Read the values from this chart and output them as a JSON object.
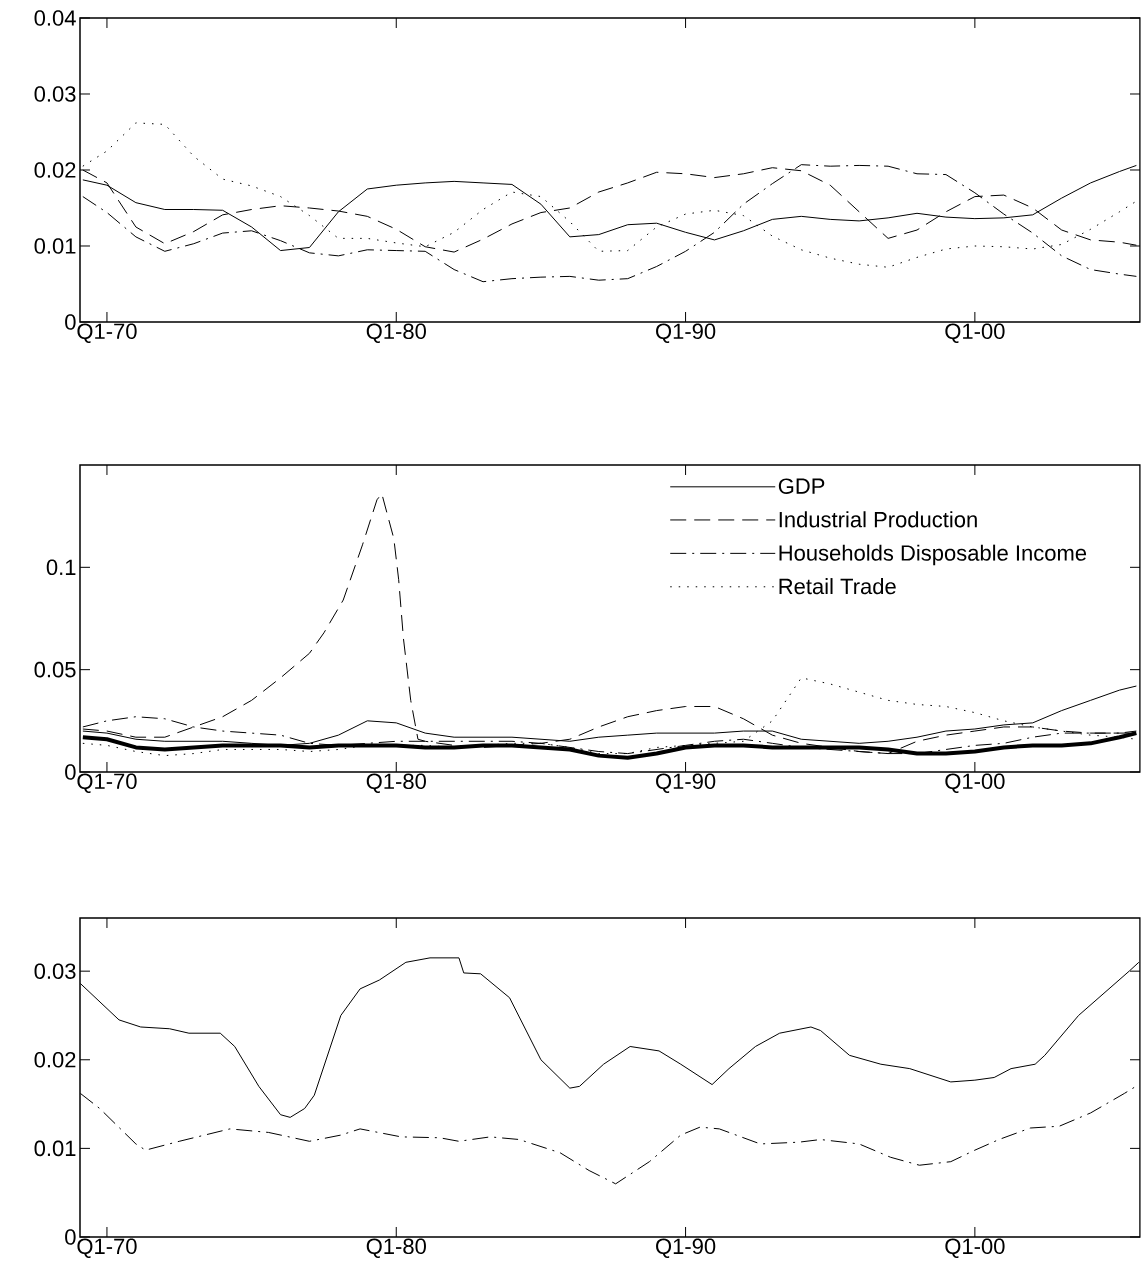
{
  "chart_data": [
    {
      "type": "line",
      "xlim": [
        "1969-01-26",
        "2005-09-16"
      ],
      "ylim": [
        0,
        0.04
      ],
      "xticks": [
        {
          "value": "1970-01",
          "label": "Q1-70"
        },
        {
          "value": "1980-01",
          "label": "Q1-80"
        },
        {
          "value": "1990-01",
          "label": "Q1-90"
        },
        {
          "value": "2000-01",
          "label": "Q1-00"
        }
      ],
      "yticks": [
        0,
        0.01,
        0.02,
        0.03,
        0.04
      ],
      "x": [
        "1969-03",
        "1970-01",
        "1971-01",
        "1972-01",
        "1973-01",
        "1974-01",
        "1975-01",
        "1976-01",
        "1977-01",
        "1978-01",
        "1979-01",
        "1980-01",
        "1981-01",
        "1982-01",
        "1983-01",
        "1984-01",
        "1985-01",
        "1986-01",
        "1987-01",
        "1988-01",
        "1989-01",
        "1990-01",
        "1991-01",
        "1992-01",
        "1993-01",
        "1994-01",
        "1995-01",
        "1996-01",
        "1997-01",
        "1998-01",
        "1999-01",
        "2000-01",
        "2001-01",
        "2002-01",
        "2003-01",
        "2004-01",
        "2005-01",
        "2005-08"
      ],
      "series": [
        {
          "color": "#000000",
          "line_style": "solid",
          "values": [
            0.0187,
            0.018,
            0.0157,
            0.0148,
            0.0148,
            0.0147,
            0.0125,
            0.0094,
            0.0098,
            0.0145,
            0.0175,
            0.018,
            0.0183,
            0.0185,
            0.0183,
            0.0181,
            0.0155,
            0.0112,
            0.0115,
            0.0128,
            0.013,
            0.0118,
            0.0108,
            0.012,
            0.0135,
            0.0139,
            0.0135,
            0.0133,
            0.0137,
            0.0143,
            0.0138,
            0.0136,
            0.0137,
            0.0141,
            0.0163,
            0.0183,
            0.0198,
            0.0206
          ]
        },
        {
          "color": "#000000",
          "line_style": "dashed",
          "values": [
            0.02,
            0.0183,
            0.0125,
            0.0103,
            0.0119,
            0.0141,
            0.0148,
            0.0153,
            0.015,
            0.0146,
            0.0139,
            0.0122,
            0.0099,
            0.0092,
            0.0109,
            0.0129,
            0.0144,
            0.015,
            0.0171,
            0.0183,
            0.0197,
            0.0195,
            0.019,
            0.0195,
            0.0203,
            0.0199,
            0.018,
            0.0145,
            0.011,
            0.0121,
            0.0145,
            0.0165,
            0.0167,
            0.015,
            0.0121,
            0.0108,
            0.0105,
            0.0101
          ]
        },
        {
          "color": "#000000",
          "line_style": "dashdot",
          "values": [
            0.0165,
            0.0144,
            0.0112,
            0.0093,
            0.0103,
            0.0117,
            0.012,
            0.0107,
            0.0091,
            0.0087,
            0.0095,
            0.0094,
            0.0093,
            0.0069,
            0.0053,
            0.0057,
            0.0059,
            0.006,
            0.0055,
            0.0057,
            0.0073,
            0.0093,
            0.0118,
            0.0155,
            0.0182,
            0.0207,
            0.0205,
            0.0206,
            0.0205,
            0.0195,
            0.0194,
            0.017,
            0.0142,
            0.0117,
            0.0087,
            0.0069,
            0.0063,
            0.006
          ]
        },
        {
          "color": "#000000",
          "line_style": "dotted",
          "values": [
            0.0205,
            0.0225,
            0.0262,
            0.026,
            0.0218,
            0.0188,
            0.0179,
            0.0165,
            0.014,
            0.011,
            0.011,
            0.0104,
            0.0099,
            0.0118,
            0.0148,
            0.0171,
            0.0165,
            0.0132,
            0.0093,
            0.0094,
            0.0125,
            0.0142,
            0.0147,
            0.014,
            0.0113,
            0.0095,
            0.0084,
            0.0076,
            0.0072,
            0.0085,
            0.0096,
            0.01,
            0.0099,
            0.0096,
            0.0102,
            0.0122,
            0.0145,
            0.0159
          ]
        }
      ]
    },
    {
      "type": "line",
      "xlim": [
        "1969-01-26",
        "2005-09-16"
      ],
      "ylim": [
        0,
        0.15
      ],
      "legend": "top right",
      "xticks": [
        {
          "value": "1970-01",
          "label": "Q1-70"
        },
        {
          "value": "1980-01",
          "label": "Q1-80"
        },
        {
          "value": "1990-01",
          "label": "Q1-90"
        },
        {
          "value": "2000-01",
          "label": "Q1-00"
        }
      ],
      "yticks": [
        0,
        0.05,
        0.1
      ],
      "x": [
        "1969-03",
        "1970-01",
        "1971-01",
        "1972-01",
        "1973-01",
        "1974-01",
        "1975-01",
        "1976-01",
        "1977-01",
        "1978-01",
        "1979-01",
        "1980-01",
        "1981-01",
        "1982-01",
        "1983-01",
        "1984-01",
        "1985-01",
        "1986-01",
        "1987-01",
        "1988-01",
        "1989-01",
        "1990-01",
        "1991-01",
        "1992-01",
        "1993-01",
        "1994-01",
        "1995-01",
        "1996-01",
        "1997-01",
        "1998-01",
        "1999-01",
        "2000-01",
        "2001-01",
        "2002-01",
        "2003-01",
        "2004-01",
        "2005-01",
        "2005-08"
      ],
      "series": [
        {
          "name": "GDP",
          "color": "#000000",
          "line_style": "solid",
          "values": [
            0.02,
            0.019,
            0.016,
            0.015,
            0.015,
            0.015,
            0.014,
            0.013,
            0.014,
            0.018,
            0.025,
            0.024,
            0.019,
            0.017,
            0.017,
            0.017,
            0.016,
            0.015,
            0.017,
            0.018,
            0.019,
            0.019,
            0.019,
            0.02,
            0.02,
            0.016,
            0.015,
            0.014,
            0.015,
            0.017,
            0.02,
            0.021,
            0.023,
            0.024,
            0.03,
            0.035,
            0.04,
            0.042
          ]
        },
        {
          "name": "Industrial Production",
          "color": "#000000",
          "line_style": "dashed",
          "x": [
            "1969-03",
            "1970-01",
            "1971-01",
            "1972-01",
            "1973-01",
            "1974-01",
            "1975-01",
            "1976-01",
            "1977-01",
            "1977-07",
            "1978-03",
            "1978-11",
            "1979-05",
            "1979-07",
            "1979-12",
            "1980-02",
            "1980-04",
            "1980-07",
            "1980-10",
            "1981-01",
            "1982-01",
            "1983-01",
            "1984-01",
            "1985-01",
            "1986-01",
            "1987-01",
            "1988-01",
            "1989-01",
            "1990-01",
            "1991-01",
            "1992-01",
            "1993-01",
            "1994-01",
            "1995-01",
            "1996-01",
            "1997-01",
            "1998-01",
            "1999-01",
            "2000-01",
            "2001-01",
            "2002-01",
            "2003-01",
            "2004-01",
            "2005-01",
            "2005-08"
          ],
          "values": [
            0.021,
            0.02,
            0.017,
            0.017,
            0.022,
            0.027,
            0.035,
            0.046,
            0.058,
            0.068,
            0.084,
            0.111,
            0.133,
            0.136,
            0.114,
            0.094,
            0.065,
            0.035,
            0.016,
            0.015,
            0.013,
            0.012,
            0.013,
            0.014,
            0.016,
            0.022,
            0.027,
            0.03,
            0.032,
            0.032,
            0.026,
            0.018,
            0.014,
            0.012,
            0.01,
            0.009,
            0.015,
            0.018,
            0.02,
            0.022,
            0.022,
            0.02,
            0.019,
            0.019,
            0.019
          ]
        },
        {
          "name": "Households Disposable Income",
          "color": "#000000",
          "line_style": "dashdot",
          "values": [
            0.022,
            0.025,
            0.027,
            0.026,
            0.022,
            0.02,
            0.019,
            0.018,
            0.014,
            0.013,
            0.014,
            0.015,
            0.015,
            0.015,
            0.015,
            0.015,
            0.014,
            0.012,
            0.01,
            0.009,
            0.011,
            0.013,
            0.015,
            0.016,
            0.014,
            0.012,
            0.011,
            0.01,
            0.009,
            0.009,
            0.011,
            0.013,
            0.014,
            0.017,
            0.019,
            0.019,
            0.019,
            0.02
          ]
        },
        {
          "name": "Retail Trade",
          "color": "#000000",
          "line_style": "dotted",
          "values": [
            0.014,
            0.013,
            0.01,
            0.008,
            0.009,
            0.011,
            0.011,
            0.011,
            0.01,
            0.011,
            0.013,
            0.013,
            0.013,
            0.012,
            0.013,
            0.014,
            0.014,
            0.012,
            0.009,
            0.009,
            0.012,
            0.013,
            0.014,
            0.015,
            0.025,
            0.046,
            0.043,
            0.039,
            0.035,
            0.033,
            0.032,
            0.029,
            0.025,
            0.022,
            0.02,
            0.018,
            0.017,
            0.016
          ]
        },
        {
          "color": "#000000",
          "line_style": "solid",
          "values": [
            0.017,
            0.016,
            0.012,
            0.011,
            0.012,
            0.013,
            0.013,
            0.013,
            0.012,
            0.013,
            0.013,
            0.013,
            0.012,
            0.012,
            0.013,
            0.013,
            0.012,
            0.011,
            0.008,
            0.007,
            0.009,
            0.012,
            0.013,
            0.013,
            0.012,
            0.012,
            0.012,
            0.012,
            0.011,
            0.009,
            0.009,
            0.01,
            0.012,
            0.013,
            0.013,
            0.014,
            0.017,
            0.019
          ]
        }
      ]
    },
    {
      "type": "line",
      "xlim": [
        "1969-01-26",
        "2005-09-16"
      ],
      "ylim": [
        0,
        0.036
      ],
      "xticks": [
        {
          "value": "1970-01",
          "label": "Q1-70"
        },
        {
          "value": "1980-01",
          "label": "Q1-80"
        },
        {
          "value": "1990-01",
          "label": "Q1-90"
        },
        {
          "value": "2000-01",
          "label": "Q1-00"
        }
      ],
      "yticks": [
        0,
        0.01,
        0.02,
        0.03
      ],
      "series": [
        {
          "color": "#000000",
          "line_style": "solid",
          "x": [
            "1969-02",
            "1970-06",
            "1971-03",
            "1972-03",
            "1972-11",
            "1973-12",
            "1974-06",
            "1975-04",
            "1976-01",
            "1976-05",
            "1976-11",
            "1977-03",
            "1978-02",
            "1978-10",
            "1979-06",
            "1980-05",
            "1981-03",
            "1982-03",
            "1982-05",
            "1982-12",
            "1983-12",
            "1985-01",
            "1986-01",
            "1986-05",
            "1987-03",
            "1988-02",
            "1989-02",
            "1989-11",
            "1990-12",
            "1991-07",
            "1992-06",
            "1993-04",
            "1994-05",
            "1994-09",
            "1995-09",
            "1996-10",
            "1997-10",
            "1999-03",
            "2000-01",
            "2000-09",
            "2001-04",
            "2002-02",
            "2002-06",
            "2003-08",
            "2005-05",
            "2005-09"
          ],
          "values": [
            0.0286,
            0.0245,
            0.0237,
            0.0235,
            0.023,
            0.023,
            0.0215,
            0.017,
            0.0138,
            0.0135,
            0.0145,
            0.016,
            0.025,
            0.028,
            0.029,
            0.031,
            0.0315,
            0.0315,
            0.0298,
            0.0297,
            0.027,
            0.02,
            0.0168,
            0.017,
            0.0195,
            0.0215,
            0.021,
            0.0195,
            0.0172,
            0.019,
            0.0215,
            0.023,
            0.0237,
            0.0233,
            0.0205,
            0.0195,
            0.019,
            0.0175,
            0.0177,
            0.018,
            0.019,
            0.0195,
            0.0205,
            0.025,
            0.03,
            0.031
          ]
        },
        {
          "color": "#000000",
          "line_style": "dashdot",
          "x": [
            "1969-02",
            "1969-10",
            "1971-01",
            "1971-05",
            "1972-07",
            "1974-04",
            "1975-08",
            "1977-01",
            "1978-02",
            "1978-10",
            "1980-03",
            "1981-07",
            "1982-03",
            "1983-04",
            "1984-04",
            "1985-09",
            "1986-09",
            "1987-08",
            "1988-10",
            "1989-11",
            "1990-07",
            "1991-03",
            "1992-08",
            "1993-12",
            "1994-09",
            "1996-01",
            "1997-02",
            "1998-02",
            "1999-03",
            "2000-01",
            "2000-11",
            "2001-12",
            "2002-12",
            "2004-01",
            "2005-03",
            "2005-09"
          ],
          "values": [
            0.0162,
            0.0145,
            0.0105,
            0.0098,
            0.0108,
            0.0122,
            0.0118,
            0.0108,
            0.0115,
            0.0122,
            0.0113,
            0.0112,
            0.0108,
            0.0113,
            0.011,
            0.0095,
            0.0075,
            0.006,
            0.0085,
            0.0115,
            0.0124,
            0.0122,
            0.0105,
            0.0107,
            0.011,
            0.0105,
            0.009,
            0.0081,
            0.0085,
            0.0098,
            0.011,
            0.0123,
            0.0125,
            0.014,
            0.0162,
            0.0172
          ]
        }
      ]
    }
  ]
}
